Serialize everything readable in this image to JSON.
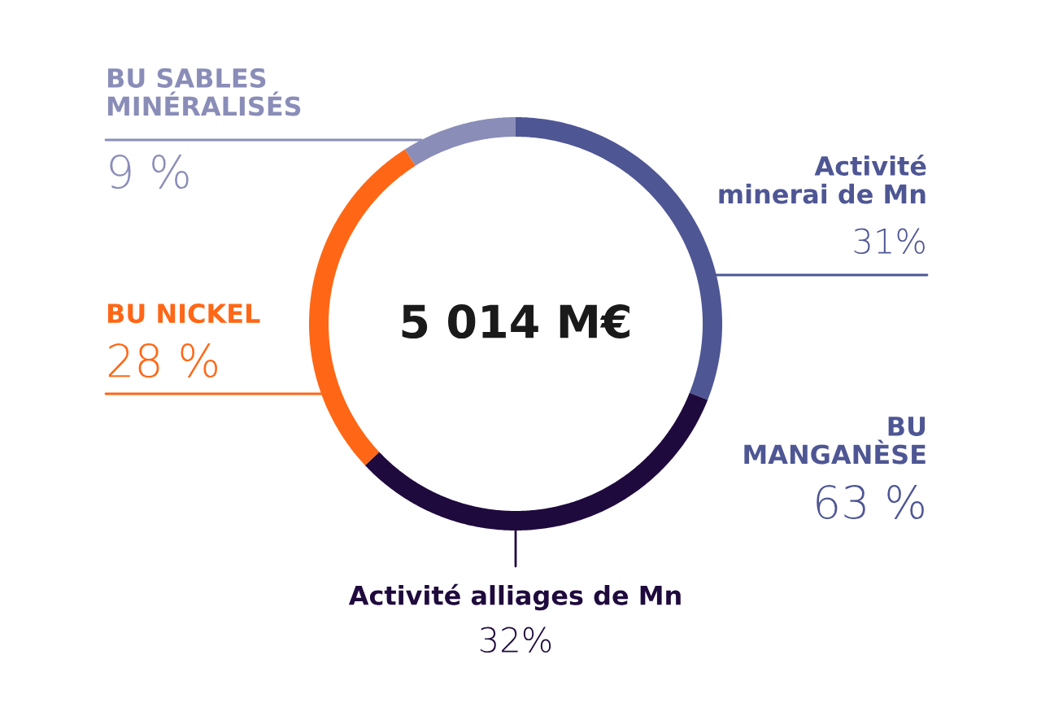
{
  "chart_data": {
    "type": "donut",
    "categories": [
      "Activité\nminerai de Mn",
      "Activité alliages de Mn",
      "BU NICKEL",
      "BU SABLES\nMINÉRALISÉS"
    ],
    "values": [
      31,
      32,
      28,
      9
    ],
    "value_labels": [
      "31%",
      "32%",
      "28 %",
      "9 %"
    ],
    "colors": [
      "#4e5694",
      "#1f0a3d",
      "#ff6716",
      "#8a8db8"
    ],
    "annotations": [
      "5 014 M€",
      "BU\nMANGANÈSE",
      "63 %"
    ]
  }
}
